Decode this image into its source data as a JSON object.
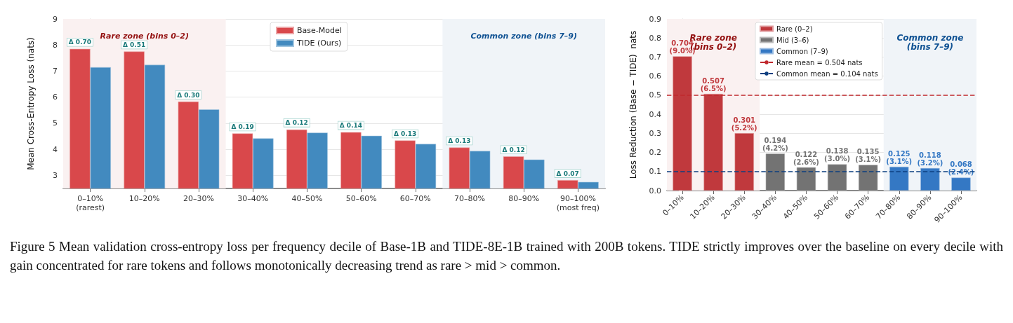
{
  "chart_data": [
    {
      "type": "bar",
      "ylabel": "Mean Cross-Entropy Loss (nats)",
      "categories": [
        "0–10%\n(rarest)",
        "10–20%",
        "20–30%",
        "30–40%",
        "40–50%",
        "50–60%",
        "60–70%",
        "70–80%",
        "80–90%",
        "90–100%\n(most freq)"
      ],
      "series": [
        {
          "name": "Base-Model",
          "color": "#d9484b",
          "values": [
            7.85,
            7.75,
            5.83,
            4.61,
            4.76,
            4.66,
            4.34,
            4.07,
            3.73,
            2.82
          ]
        },
        {
          "name": "TIDE (Ours)",
          "color": "#428abf",
          "values": [
            7.15,
            7.24,
            5.53,
            4.42,
            4.64,
            4.52,
            4.21,
            3.94,
            3.61,
            2.75
          ]
        }
      ],
      "ylim": [
        2.5,
        9
      ],
      "yticks": [
        3,
        4,
        5,
        6,
        7,
        8,
        9
      ],
      "grid": "y",
      "legend": "top",
      "bands": [
        {
          "axis": "x",
          "from": "0–10%\n(rarest)",
          "to": "20–30%",
          "label": "Rare zone (bins 0–2)",
          "color": "#faf1f1"
        },
        {
          "axis": "x",
          "from": "70–80%",
          "to": "90–100%\n(most freq)",
          "label": "Common zone (bins 7–9)",
          "color": "#f0f4f8"
        }
      ],
      "annotations": [
        {
          "text": "Δ 0.70",
          "x": "0–10%\n(rarest)",
          "y": 7.85
        },
        {
          "text": "Δ 0.51",
          "x": "10–20%",
          "y": 7.75
        },
        {
          "text": "Δ 0.30",
          "x": "20–30%",
          "y": 5.83
        },
        {
          "text": "Δ 0.19",
          "x": "30–40%",
          "y": 4.61
        },
        {
          "text": "Δ 0.12",
          "x": "40–50%",
          "y": 4.76
        },
        {
          "text": "Δ 0.14",
          "x": "50–60%",
          "y": 4.66
        },
        {
          "text": "Δ 0.13",
          "x": "60–70%",
          "y": 4.34
        },
        {
          "text": "Δ 0.13",
          "x": "70–80%",
          "y": 4.07
        },
        {
          "text": "Δ 0.12",
          "x": "80–90%",
          "y": 3.73
        },
        {
          "text": "Δ 0.07",
          "x": "90–100%\n(most freq)",
          "y": 2.82
        }
      ]
    },
    {
      "type": "bar",
      "ylabel": "Loss Reduction (Base − TIDE)  nats",
      "stacked": true,
      "categories": [
        "0–10%",
        "10–20%",
        "20–30%",
        "30–40%",
        "40–50%",
        "50–60%",
        "60–70%",
        "70–80%",
        "80–90%",
        "90–100%"
      ],
      "series": [
        {
          "name": "Rare (0–2)",
          "color": "#c0393d",
          "values": [
            0.704,
            0.507,
            0.301,
            null,
            null,
            null,
            null,
            null,
            null,
            null
          ],
          "value_labels": [
            "0.704\n(9.0%)",
            "0.507\n(6.5%)",
            "0.301\n(5.2%)",
            null,
            null,
            null,
            null,
            null,
            null,
            null
          ]
        },
        {
          "name": "Mid (3–6)",
          "color": "#737373",
          "values": [
            null,
            null,
            null,
            0.194,
            0.122,
            0.138,
            0.135,
            null,
            null,
            null
          ],
          "value_labels": [
            null,
            null,
            null,
            "0.194\n(4.2%)",
            "0.122\n(2.6%)",
            "0.138\n(3.0%)",
            "0.135\n(3.1%)",
            null,
            null,
            null
          ]
        },
        {
          "name": "Common (7–9)",
          "color": "#3478c4",
          "values": [
            null,
            null,
            null,
            null,
            null,
            null,
            null,
            0.125,
            0.118,
            0.068
          ],
          "value_labels": [
            null,
            null,
            null,
            null,
            null,
            null,
            null,
            "0.125\n(3.1%)",
            "0.118\n(3.2%)",
            "0.068\n(2.4%)"
          ]
        }
      ],
      "ylim": [
        0,
        0.9
      ],
      "yticks": [
        {
          "value": 0,
          "label": "0.0"
        },
        0.1,
        0.2,
        0.3,
        0.4,
        0.5,
        0.6,
        0.7,
        0.8,
        0.9
      ],
      "grid": "y",
      "legend": "top",
      "ref_lines": [
        {
          "axis": "y",
          "value": 0.504,
          "label": "Rare mean = 0.504 nats",
          "color": "#c0282d",
          "line_style": "dashed"
        },
        {
          "axis": "y",
          "value": 0.104,
          "label": "Common mean = 0.104 nats",
          "color": "#0d3f80",
          "line_style": "dashed"
        }
      ],
      "bands": [
        {
          "axis": "x",
          "from": "0–10%",
          "to": "20–30%",
          "label": "Rare zone\n(bins 0–2)",
          "color": "#faf1f1"
        },
        {
          "axis": "x",
          "from": "70–80%",
          "to": "90–100%",
          "label": "Common zone\n(bins 7–9)",
          "color": "#f0f4f8"
        }
      ],
      "annotations": [
        "Figure 5  Mean validation cross-entropy loss per frequency decile of Base-1B and TIDE-8E-1B trained with 200B tokens. TIDE strictly improves over the baseline on every decile with gain concentrated for rare tokens and follows monotonically decreasing trend as rare > mid > common."
      ]
    }
  ]
}
